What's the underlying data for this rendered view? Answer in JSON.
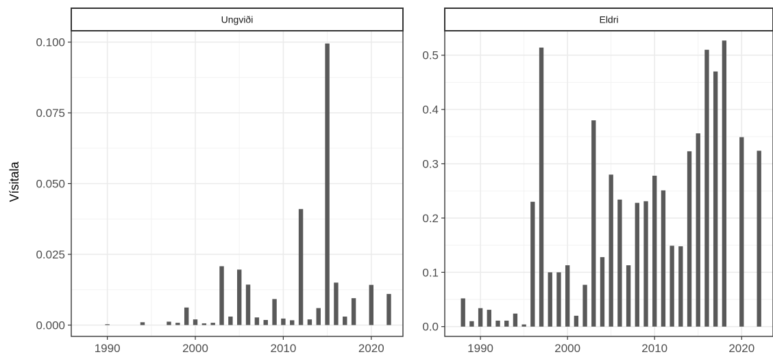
{
  "y_axis_title": "Vísitala",
  "chart_data": [
    {
      "type": "bar",
      "title": "Ungviði",
      "xlabel": "",
      "ylabel": "Vísitala",
      "xlim": [
        1985.9,
        2023.6
      ],
      "ylim": [
        -0.004,
        0.104
      ],
      "x_ticks": [
        1990,
        2000,
        2010,
        2020
      ],
      "y_ticks": [
        0.0,
        0.025,
        0.05,
        0.075,
        0.1
      ],
      "y_tick_labels": [
        "0.000",
        "0.025",
        "0.050",
        "0.075",
        "0.100"
      ],
      "x_tick_labels": [
        "1990",
        "2000",
        "2010",
        "2020"
      ],
      "grid": true,
      "bar_color": "#595959",
      "x": [
        1990,
        1994,
        1997,
        1998,
        1999,
        2000,
        2001,
        2002,
        2003,
        2004,
        2005,
        2006,
        2007,
        2008,
        2009,
        2010,
        2011,
        2012,
        2013,
        2014,
        2015,
        2016,
        2017,
        2018,
        2020,
        2022
      ],
      "values": [
        0.0003,
        0.001,
        0.0012,
        0.0008,
        0.0062,
        0.002,
        0.0006,
        0.0008,
        0.0208,
        0.003,
        0.0196,
        0.0143,
        0.0027,
        0.0018,
        0.0092,
        0.0023,
        0.0017,
        0.041,
        0.002,
        0.006,
        0.0995,
        0.015,
        0.003,
        0.0095,
        0.0142,
        0.011
      ]
    },
    {
      "type": "bar",
      "title": "Eldri",
      "xlabel": "",
      "ylabel": "",
      "xlim": [
        1985.9,
        2023.6
      ],
      "ylim": [
        -0.018,
        0.545
      ],
      "x_ticks": [
        1990,
        2000,
        2010,
        2020
      ],
      "y_ticks": [
        0.0,
        0.1,
        0.2,
        0.3,
        0.4,
        0.5
      ],
      "y_tick_labels": [
        "0.0",
        "0.1",
        "0.2",
        "0.3",
        "0.4",
        "0.5"
      ],
      "x_tick_labels": [
        "1990",
        "2000",
        "2010",
        "2020"
      ],
      "grid": true,
      "bar_color": "#595959",
      "x": [
        1988,
        1989,
        1990,
        1991,
        1992,
        1993,
        1994,
        1995,
        1996,
        1997,
        1998,
        1999,
        2000,
        2001,
        2002,
        2003,
        2004,
        2005,
        2006,
        2007,
        2008,
        2009,
        2010,
        2011,
        2012,
        2013,
        2014,
        2015,
        2016,
        2017,
        2018,
        2020,
        2022
      ],
      "values": [
        0.052,
        0.01,
        0.034,
        0.031,
        0.011,
        0.011,
        0.024,
        0.004,
        0.23,
        0.514,
        0.1,
        0.1,
        0.113,
        0.02,
        0.077,
        0.38,
        0.128,
        0.28,
        0.234,
        0.113,
        0.228,
        0.231,
        0.278,
        0.251,
        0.149,
        0.148,
        0.323,
        0.356,
        0.51,
        0.47,
        0.527,
        0.349,
        0.324
      ]
    }
  ]
}
